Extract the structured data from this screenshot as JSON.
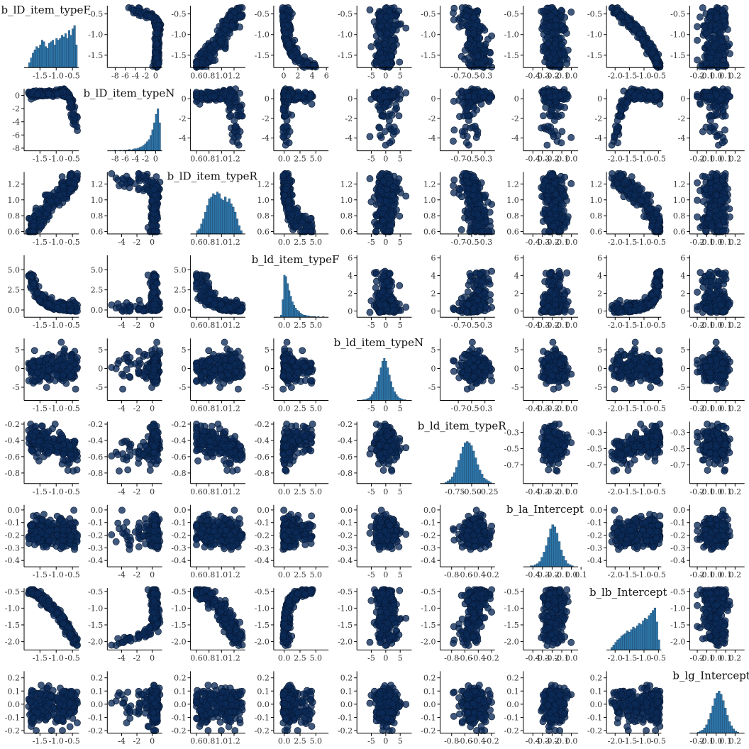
{
  "chart_data": {
    "type": "pairs",
    "description_of_panels": "diagonal: histogram of each variable; off-diagonal: scatter of column variable (x) vs row variable (y)",
    "colors": {
      "point_fill": "#0b2a57",
      "point_edge": "#061833",
      "bar_fill": "#2e75a8",
      "bar_edge": "#1b3f60",
      "axis": "#000000"
    },
    "variables": [
      {
        "name": "b_lD_item_typeF",
        "dist": {
          "center": -1.0,
          "sd": 0.34,
          "min": -1.85,
          "max": -0.35
        },
        "x_range": [
          -1.9,
          -0.3
        ],
        "x_ticks": [
          {
            "v": -1.5,
            "label": "-1.5"
          },
          {
            "v": -1.0,
            "label": "-1.0"
          },
          {
            "v": -0.5,
            "label": "-0.5"
          }
        ],
        "y_range": [
          -1.8,
          -0.3
        ],
        "y_ticks": [
          {
            "v": -1.5,
            "label": "-1.5"
          },
          {
            "v": -1.0,
            "label": "-1.0"
          },
          {
            "v": -0.5,
            "label": "-0.5"
          }
        ],
        "hist": [
          3,
          6,
          9,
          11,
          13,
          12,
          14,
          17,
          16,
          13,
          12,
          15,
          16,
          17,
          14,
          18,
          17,
          18,
          20,
          19,
          21,
          18,
          23,
          20,
          24,
          26,
          14
        ]
      },
      {
        "name": "b_lD_item_typeN",
        "dist": {
          "center": 0.2,
          "sd": 0.5,
          "min": -8.2,
          "max": 1.0
        },
        "x_range": [
          -9.0,
          1.3
        ],
        "x_ticks": [
          {
            "v": -8,
            "label": "-8"
          },
          {
            "v": -6,
            "label": "-6"
          },
          {
            "v": -4,
            "label": "-4"
          },
          {
            "v": -2,
            "label": "-2"
          },
          {
            "v": 0,
            "label": "0"
          }
        ],
        "y_range": [
          -8.4,
          1.0
        ],
        "y_ticks": [
          {
            "v": -8,
            "label": "-8"
          },
          {
            "v": -6,
            "label": "-6"
          },
          {
            "v": -4,
            "label": "-4"
          },
          {
            "v": -2,
            "label": "-2"
          },
          {
            "v": 0,
            "label": "0"
          }
        ],
        "row_x_range": [
          -5.5,
          1.3
        ],
        "row_x_ticks": [
          {
            "v": -4,
            "label": "-4"
          },
          {
            "v": -2,
            "label": "-2"
          },
          {
            "v": 0,
            "label": "0"
          }
        ],
        "row_y_range": [
          -5.3,
          1.0
        ],
        "row_y_ticks": [
          {
            "v": -4,
            "label": "-4"
          },
          {
            "v": -2,
            "label": "-2"
          },
          {
            "v": 0,
            "label": "0"
          }
        ],
        "hist": [
          1,
          0,
          0,
          1,
          0,
          1,
          1,
          1,
          2,
          1,
          2,
          3,
          3,
          4,
          5,
          6,
          8,
          10,
          13,
          16,
          22,
          30,
          40,
          52,
          60,
          40
        ]
      },
      {
        "name": "b_lD_item_typeR",
        "dist": {
          "center": 0.95,
          "sd": 0.17,
          "min": 0.6,
          "max": 1.33
        },
        "x_range": [
          0.55,
          1.38
        ],
        "x_ticks": [
          {
            "v": 0.6,
            "label": "0.6"
          },
          {
            "v": 0.8,
            "label": "0.8"
          },
          {
            "v": 1.0,
            "label": "1.0"
          },
          {
            "v": 1.2,
            "label": "1.2"
          }
        ],
        "y_range": [
          0.57,
          1.35
        ],
        "y_ticks": [
          {
            "v": 0.6,
            "label": "0.6"
          },
          {
            "v": 0.8,
            "label": "0.8"
          },
          {
            "v": 1.0,
            "label": "1.0"
          },
          {
            "v": 1.2,
            "label": "1.2"
          }
        ],
        "hist": [
          2,
          3,
          6,
          9,
          13,
          17,
          21,
          22,
          24,
          23,
          25,
          24,
          21,
          20,
          22,
          19,
          21,
          18,
          16,
          13,
          9,
          5,
          2
        ]
      },
      {
        "name": "b_ld_item_typeF",
        "dist": {
          "center": 0.6,
          "sd": 1.0,
          "min": -0.6,
          "max": 6.3
        },
        "x_range": [
          -1.2,
          7.0
        ],
        "x_ticks": [
          {
            "v": 0.0,
            "label": "0.0"
          },
          {
            "v": 2.5,
            "label": "2.5"
          },
          {
            "v": 5.0,
            "label": "5.0"
          }
        ],
        "y_range": [
          -0.8,
          6.3
        ],
        "y_ticks": [
          {
            "v": 0.0,
            "label": "0.0"
          },
          {
            "v": 2.5,
            "label": "2.5"
          },
          {
            "v": 5.0,
            "label": "5.0"
          }
        ],
        "first_row_x_range": [
          -1.0,
          6.3
        ],
        "first_row_x_ticks": [
          {
            "v": 0,
            "label": "0"
          },
          {
            "v": 2,
            "label": "2"
          },
          {
            "v": 4,
            "label": "4"
          },
          {
            "v": 6,
            "label": "6"
          }
        ],
        "row_y_range": [
          -0.7,
          6.3
        ],
        "row_y_ticks": [
          {
            "v": 0,
            "label": "0"
          },
          {
            "v": 2,
            "label": "2"
          },
          {
            "v": 4,
            "label": "4"
          },
          {
            "v": 6,
            "label": "6"
          }
        ],
        "second_row_y_range": [
          -0.9,
          6.8
        ],
        "hist": [
          3,
          25,
          60,
          58,
          48,
          38,
          30,
          22,
          17,
          13,
          10,
          8,
          6,
          4,
          3,
          3,
          2,
          2,
          1,
          1,
          1,
          1,
          0,
          1,
          0,
          0,
          1
        ]
      },
      {
        "name": "b_ld_item_typeN",
        "dist": {
          "center": 0.0,
          "sd": 2.0,
          "min": -8.0,
          "max": 7.0
        },
        "x_range": [
          -9.0,
          9.0
        ],
        "x_ticks": [
          {
            "v": -5,
            "label": "-5"
          },
          {
            "v": 0,
            "label": "0"
          },
          {
            "v": 5,
            "label": "5"
          }
        ],
        "y_range": [
          -8.5,
          8.0
        ],
        "y_ticks": [
          {
            "v": -5,
            "label": "-5"
          },
          {
            "v": 0,
            "label": "0"
          },
          {
            "v": 5,
            "label": "5"
          }
        ],
        "hist": [
          1,
          1,
          2,
          3,
          5,
          8,
          12,
          18,
          26,
          35,
          45,
          54,
          58,
          54,
          45,
          35,
          26,
          18,
          12,
          8,
          5,
          3,
          2,
          1,
          1
        ]
      },
      {
        "name": "b_ld_item_typeR",
        "dist": {
          "center": -0.52,
          "sd": 0.11,
          "min": -0.9,
          "max": -0.2
        },
        "x_range": [
          -0.93,
          -0.15
        ],
        "x_ticks": [
          {
            "v": -0.7,
            "label": "-0.7"
          },
          {
            "v": -0.5,
            "label": "-0.5"
          },
          {
            "v": -0.3,
            "label": "-0.3"
          }
        ],
        "y_range": [
          -0.93,
          -0.17
        ],
        "y_ticks": [
          {
            "v": -0.8,
            "label": "-0.8"
          },
          {
            "v": -0.6,
            "label": "-0.6"
          },
          {
            "v": -0.4,
            "label": "-0.4"
          },
          {
            "v": -0.2,
            "label": "-0.2"
          }
        ],
        "row_y_ticks_alt": [
          {
            "v": -0.7,
            "label": "-0.7"
          },
          {
            "v": -0.5,
            "label": "-0.5"
          },
          {
            "v": -0.3,
            "label": "-0.3"
          }
        ],
        "hist_x_ticks": [
          {
            "v": -0.75,
            "label": "-0.75"
          },
          {
            "v": -0.5,
            "label": "-0.50"
          },
          {
            "v": -0.25,
            "label": "-0.25"
          }
        ],
        "lower_x_ticks": [
          {
            "v": -0.8,
            "label": "-0.8"
          },
          {
            "v": -0.6,
            "label": "-0.6"
          },
          {
            "v": -0.4,
            "label": "-0.4"
          },
          {
            "v": -0.2,
            "label": "-0.2"
          }
        ],
        "hist": [
          1,
          2,
          3,
          5,
          8,
          12,
          17,
          22,
          27,
          30,
          31,
          30,
          28,
          24,
          19,
          14,
          10,
          7,
          4,
          3,
          2,
          1
        ]
      },
      {
        "name": "b_la_Intercept",
        "dist": {
          "center": -0.17,
          "sd": 0.06,
          "min": -0.43,
          "max": 0.02
        },
        "x_range": [
          -0.47,
          0.07
        ],
        "x_ticks": [
          {
            "v": -0.4,
            "label": "-0.4"
          },
          {
            "v": -0.3,
            "label": "-0.3"
          },
          {
            "v": -0.2,
            "label": "-0.2"
          },
          {
            "v": -0.1,
            "label": "-0.1"
          },
          {
            "v": 0.0,
            "label": "0.0"
          }
        ],
        "y_range": [
          -0.45,
          0.04
        ],
        "y_ticks": [
          {
            "v": -0.4,
            "label": "-0.4"
          },
          {
            "v": -0.3,
            "label": "-0.3"
          },
          {
            "v": -0.2,
            "label": "-0.2"
          },
          {
            "v": -0.1,
            "label": "-0.1"
          },
          {
            "v": 0.0,
            "label": "0.0"
          }
        ],
        "hist_x_ticks": [
          {
            "v": -0.4,
            "label": "-0.4"
          },
          {
            "v": -0.3,
            "label": "-0.3"
          },
          {
            "v": -0.2,
            "label": "-0.2"
          },
          {
            "v": -0.1,
            "label": "-0.1"
          },
          {
            "v": 0.0,
            "label": "0.0"
          },
          {
            "v": 0.1,
            "label": "0.1"
          }
        ],
        "hist": [
          1,
          1,
          2,
          3,
          5,
          9,
          14,
          20,
          28,
          36,
          40,
          38,
          32,
          24,
          16,
          10,
          6,
          3,
          2,
          1
        ]
      },
      {
        "name": "b_lb_Intercept",
        "dist": {
          "center": -1.1,
          "sd": 0.4,
          "min": -2.15,
          "max": -0.45
        },
        "x_range": [
          -2.2,
          -0.4
        ],
        "x_ticks": [
          {
            "v": -2.0,
            "label": "-2.0"
          },
          {
            "v": -1.5,
            "label": "-1.5"
          },
          {
            "v": -1.0,
            "label": "-1.0"
          },
          {
            "v": -0.5,
            "label": "-0.5"
          }
        ],
        "y_range": [
          -2.25,
          -0.4
        ],
        "y_ticks": [
          {
            "v": -2.0,
            "label": "-2.0"
          },
          {
            "v": -1.5,
            "label": "-1.5"
          },
          {
            "v": -1.0,
            "label": "-1.0"
          },
          {
            "v": -0.5,
            "label": "-0.5"
          }
        ],
        "hist": [
          2,
          4,
          6,
          8,
          9,
          11,
          12,
          13,
          15,
          14,
          16,
          18,
          17,
          19,
          21,
          20,
          23,
          25,
          24,
          27,
          29,
          31,
          33,
          22,
          8
        ]
      },
      {
        "name": "b_lg_Intercept",
        "dist": {
          "center": 0.0,
          "sd": 0.07,
          "min": -0.2,
          "max": 0.24
        },
        "x_range": [
          -0.25,
          0.3
        ],
        "x_ticks": [
          {
            "v": -0.2,
            "label": "-0.2"
          },
          {
            "v": -0.1,
            "label": "-0.1"
          },
          {
            "v": 0.0,
            "label": "0.0"
          },
          {
            "v": 0.1,
            "label": "0.1"
          },
          {
            "v": 0.2,
            "label": "0.2"
          }
        ],
        "y_range": [
          -0.22,
          0.25
        ],
        "y_ticks": [
          {
            "v": -0.2,
            "label": "-0.2"
          },
          {
            "v": -0.1,
            "label": "-0.1"
          },
          {
            "v": 0.0,
            "label": "0.0"
          },
          {
            "v": 0.1,
            "label": "0.1"
          },
          {
            "v": 0.2,
            "label": "0.2"
          }
        ],
        "hist": [
          1,
          2,
          3,
          5,
          8,
          13,
          19,
          26,
          33,
          38,
          40,
          37,
          31,
          24,
          17,
          11,
          7,
          4,
          2,
          1
        ]
      }
    ],
    "relations": {
      "0-1": {
        "kind": "knee",
        "note": "b_lD_item_typeN drops sharply as b_lD_item_typeF approaches -0.4"
      },
      "0-2": {
        "kind": "linear",
        "corr": 0.9
      },
      "0-3": {
        "kind": "decay",
        "note": "b_ld_item_typeF decays as b_lD_item_typeF increases"
      },
      "0-5": {
        "kind": "linear",
        "corr": -0.45
      },
      "0-7": {
        "kind": "curve",
        "note": "b_lb_Intercept decreases nonlinearly with b_lD_item_typeF"
      },
      "1-2": {
        "kind": "knee"
      },
      "1-3": {
        "kind": "hockey"
      },
      "1-7": {
        "kind": "saturating"
      },
      "2-3": {
        "kind": "decay"
      },
      "2-5": {
        "kind": "linear",
        "corr": -0.5
      },
      "2-7": {
        "kind": "curve"
      },
      "3-5": {
        "kind": "linear",
        "corr": 0.5
      },
      "3-7": {
        "kind": "saturating"
      },
      "6-5": {
        "kind": "linear",
        "corr": -0.3
      }
    }
  }
}
